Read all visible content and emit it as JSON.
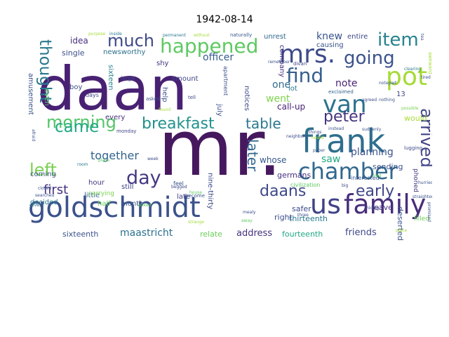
{
  "title": "1942-08-14",
  "colormap": "viridis",
  "words": [
    {
      "text": "daan",
      "color": "#482173"
    },
    {
      "text": "mr.",
      "color": "#46195f"
    },
    {
      "text": "frank",
      "color": "#2e6e8e"
    },
    {
      "text": "goldschmidt",
      "color": "#3b528b"
    },
    {
      "text": "family",
      "color": "#472d7b"
    },
    {
      "text": "us",
      "color": "#404387"
    },
    {
      "text": "chamber",
      "color": "#31688e"
    },
    {
      "text": "mrs.",
      "color": "#3e4a89"
    },
    {
      "text": "van",
      "color": "#2c728e"
    },
    {
      "text": "pot",
      "color": "#a5db36"
    },
    {
      "text": "breakfast",
      "color": "#21918c"
    },
    {
      "text": "happened",
      "color": "#5ec962"
    },
    {
      "text": "find",
      "color": "#355f8d"
    },
    {
      "text": "thought",
      "color": "#2a788e"
    },
    {
      "text": "morning",
      "color": "#54c568"
    },
    {
      "text": "day",
      "color": "#443983"
    },
    {
      "text": "much",
      "color": "#3e4989"
    },
    {
      "text": "item",
      "color": "#26828e"
    },
    {
      "text": "going",
      "color": "#3b528b"
    },
    {
      "text": "arrived",
      "color": "#414487"
    },
    {
      "text": "left",
      "color": "#7ad151"
    },
    {
      "text": "came",
      "color": "#22a884"
    },
    {
      "text": "peter",
      "color": "#46337e"
    },
    {
      "text": "table",
      "color": "#2a788e"
    },
    {
      "text": "daans",
      "color": "#3e4989"
    },
    {
      "text": "early",
      "color": "#404588"
    },
    {
      "text": "first",
      "color": "#46327e"
    },
    {
      "text": "later",
      "color": "#31688e"
    },
    {
      "text": "together",
      "color": "#33638d"
    },
    {
      "text": "maastricht",
      "color": "#2c718e"
    },
    {
      "text": "address",
      "color": "#46317e"
    },
    {
      "text": "friends",
      "color": "#3f4889"
    },
    {
      "text": "fourteenth",
      "color": "#21a685"
    },
    {
      "text": "relate",
      "color": "#6ccd5a"
    },
    {
      "text": "sixteenth",
      "color": "#3b528b"
    },
    {
      "text": "thirteenth",
      "color": "#2a788e"
    },
    {
      "text": "planning",
      "color": "#3b528b"
    },
    {
      "text": "went",
      "color": "#7fd34e"
    },
    {
      "text": "saw",
      "color": "#22a884"
    },
    {
      "text": "note",
      "color": "#482475"
    },
    {
      "text": "one",
      "color": "#2f6c8e"
    },
    {
      "text": "knew",
      "color": "#3a548c"
    },
    {
      "text": "officer",
      "color": "#365c8d"
    },
    {
      "text": "idea",
      "color": "#472e7c"
    },
    {
      "text": "single",
      "color": "#3b518b"
    },
    {
      "text": "newsworthy",
      "color": "#2c718e"
    },
    {
      "text": "unrest",
      "color": "#31688e"
    },
    {
      "text": "entire",
      "color": "#3e4a89"
    },
    {
      "text": "causing",
      "color": "#3b528b"
    },
    {
      "text": "company",
      "color": "#46337e"
    },
    {
      "text": "call-up",
      "color": "#482173"
    },
    {
      "text": "sending",
      "color": "#3b528b"
    },
    {
      "text": "would",
      "color": "#a8db34"
    },
    {
      "text": "whose",
      "color": "#38588c"
    },
    {
      "text": "germans",
      "color": "#46317e"
    },
    {
      "text": "right",
      "color": "#3d4d8a"
    },
    {
      "text": "safer",
      "color": "#3e4a89"
    },
    {
      "text": "leave",
      "color": "#46327e"
    },
    {
      "text": "deserted",
      "color": "#3b528b"
    },
    {
      "text": "month",
      "color": "#3a548c"
    },
    {
      "text": "half",
      "color": "#6ccd5a"
    },
    {
      "text": "decided",
      "color": "#2a788e"
    },
    {
      "text": "little",
      "color": "#33638d"
    },
    {
      "text": "still",
      "color": "#404588"
    },
    {
      "text": "coming",
      "color": "#3b528b"
    },
    {
      "text": "hour",
      "color": "#453781"
    },
    {
      "text": "boy",
      "color": "#3e4a89"
    },
    {
      "text": "sixteen",
      "color": "#26828e"
    },
    {
      "text": "every",
      "color": "#46337e"
    },
    {
      "text": "help",
      "color": "#3b528b"
    },
    {
      "text": "amount",
      "color": "#404588"
    },
    {
      "text": "shy",
      "color": "#46337e"
    },
    {
      "text": "amusement",
      "color": "#3b528b"
    },
    {
      "text": "even",
      "color": "#5ec962"
    },
    {
      "text": "late",
      "color": "#414487"
    },
    {
      "text": "nine-thirty",
      "color": "#3e4989"
    },
    {
      "text": "july",
      "color": "#3b528b"
    },
    {
      "text": "notices",
      "color": "#3e4a89"
    },
    {
      "text": "carrying",
      "color": "#7ad151"
    },
    {
      "text": "lot",
      "color": "#2a788e"
    },
    {
      "text": "phoned",
      "color": "#46337e"
    },
    {
      "text": "filled",
      "color": "#6ccd5a"
    },
    {
      "text": "13",
      "color": "#404588"
    },
    {
      "text": "civilization",
      "color": "#5ec962"
    },
    {
      "text": "interested",
      "color": "#38588c"
    },
    {
      "text": "apartment",
      "color": "#3b528b"
    },
    {
      "text": "days",
      "color": "#414487"
    },
    {
      "text": "feel",
      "color": "#3b528b"
    },
    {
      "text": "become",
      "color": "#3b528b"
    },
    {
      "text": "large",
      "color": "#3e4989"
    },
    {
      "text": "asked",
      "color": "#3b528b"
    },
    {
      "text": "tell",
      "color": "#404588"
    },
    {
      "text": "monday",
      "color": "#404588"
    },
    {
      "text": "afraid",
      "color": "#3b528b"
    },
    {
      "text": "permanent",
      "color": "#2a788e"
    },
    {
      "text": "naturally",
      "color": "#38588c"
    },
    {
      "text": "without",
      "color": "#a5db36"
    },
    {
      "text": "inside",
      "color": "#2a788e"
    },
    {
      "text": "purpose",
      "color": "#a5db36"
    },
    {
      "text": "divan",
      "color": "#404588"
    },
    {
      "text": "exclaimed",
      "color": "#33638d"
    },
    {
      "text": "week",
      "color": "#3e4989"
    },
    {
      "text": "found",
      "color": "#a5db36"
    },
    {
      "text": "paper",
      "color": "#3b528b"
    },
    {
      "text": "lugging",
      "color": "#3e4989"
    },
    {
      "text": "awkward",
      "color": "#a5db36"
    },
    {
      "text": "clearing",
      "color": "#2a788e"
    },
    {
      "text": "nothing",
      "color": "#3b528b"
    },
    {
      "text": "instead",
      "color": "#3b528b"
    },
    {
      "text": "suddenly",
      "color": "#3b528b"
    },
    {
      "text": "neighbors",
      "color": "#3e4989"
    },
    {
      "text": "heard",
      "color": "#a5db36"
    },
    {
      "text": "room",
      "color": "#2a788e"
    },
    {
      "text": "place",
      "color": "#5ec962"
    },
    {
      "text": "searched",
      "color": "#3b528b"
    },
    {
      "text": "closed",
      "color": "#3b528b"
    },
    {
      "text": "mealy",
      "color": "#3b528b"
    },
    {
      "text": "away",
      "color": "#5ec962"
    },
    {
      "text": "hiding",
      "color": "#3e4989"
    },
    {
      "text": "bed",
      "color": "#5ec962"
    },
    {
      "text": "piece",
      "color": "#a5db36"
    },
    {
      "text": "straighten",
      "color": "#3b528b"
    },
    {
      "text": "hurried",
      "color": "#3b528b"
    },
    {
      "text": "promised",
      "color": "#3b528b"
    },
    {
      "text": "tea",
      "color": "#3b528b"
    },
    {
      "text": "tired",
      "color": "#3b528b"
    },
    {
      "text": "cover",
      "color": "#2a788e"
    },
    {
      "text": "things",
      "color": "#3b528b"
    },
    {
      "text": "big",
      "color": "#3e4989"
    },
    {
      "text": "three",
      "color": "#3b528b"
    },
    {
      "text": "agreed",
      "color": "#3e4989"
    },
    {
      "text": "remember",
      "color": "#3b528b"
    },
    {
      "text": "locked",
      "color": "#5ec962"
    },
    {
      "text": "notepad",
      "color": "#3b528b"
    },
    {
      "text": "possible",
      "color": "#7ad151"
    },
    {
      "text": "strange",
      "color": "#a5db36"
    },
    {
      "text": "begged",
      "color": "#3e4989"
    },
    {
      "text": "house",
      "color": "#5ec962"
    }
  ]
}
